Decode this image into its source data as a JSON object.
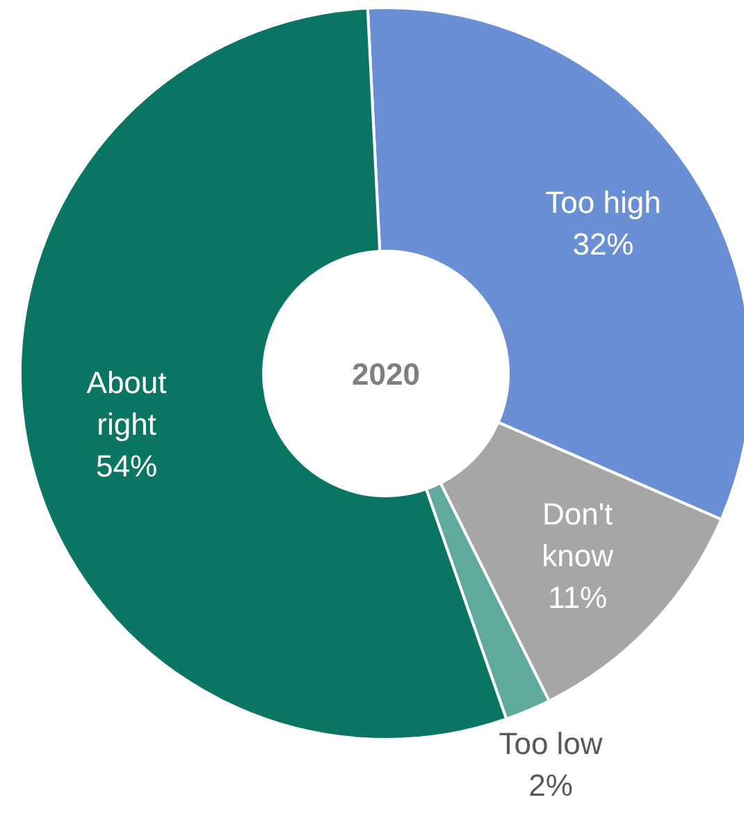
{
  "chart_data": {
    "type": "donut",
    "title": "2020",
    "categories": [
      "Too high",
      "Don't know",
      "Too low",
      "About right"
    ],
    "values": [
      32,
      11,
      2,
      54
    ],
    "value_labels": [
      "32%",
      "11%",
      "2%",
      "54%"
    ],
    "colors": [
      "#6b8fd4",
      "#a6a6a6",
      "#5faa9c",
      "#0b7563"
    ]
  }
}
